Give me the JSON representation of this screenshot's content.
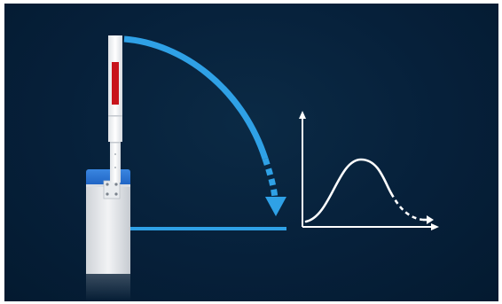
{
  "scene": {
    "background_color": "#05203a",
    "accent_color": "#2fa1e6",
    "boom_stripe_color": "#c8141c",
    "curve_color": "#ffffff",
    "axes": {
      "y_label": "",
      "x_label": ""
    }
  }
}
